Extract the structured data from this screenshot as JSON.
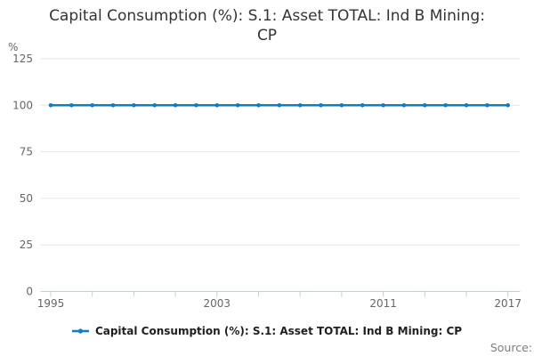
{
  "title": {
    "full": "Capital Consumption (%): S.1: Asset TOTAL: Ind B Mining: CP",
    "lines": [
      "Capital Consumption (%): S.1: Asset TOTAL: Ind B Mining:",
      "CP"
    ]
  },
  "legend": {
    "items": [
      {
        "label": "Capital Consumption (%): S.1: Asset TOTAL: Ind B Mining: CP",
        "color": "#0e7dc2"
      }
    ]
  },
  "source": {
    "label": "Source:"
  },
  "colors": {
    "series_blue": "#0e7dc2",
    "grid": "#e6e6e6",
    "axis": "#c4d0de",
    "tick_label": "#666666",
    "unit_label": "#666666",
    "title_text": "#333333",
    "legend_text": "#1f1f1f",
    "source_text": "#7d7d7d",
    "background": "#ffffff"
  },
  "y_axis": {
    "unit_label": "%",
    "tick_values": [
      0,
      25,
      50,
      75,
      100,
      125
    ],
    "min": 0,
    "max": 125
  },
  "x_axis": {
    "tick_years": [
      1995,
      1997,
      1999,
      2001,
      2003,
      2005,
      2007,
      2009,
      2011,
      2013,
      2015,
      2017
    ],
    "label_years": [
      1995,
      2003,
      2011,
      2017
    ],
    "min": 1995,
    "max": 2017
  },
  "chart_data": {
    "type": "line",
    "title": "Capital Consumption (%): S.1: Asset TOTAL: Ind B Mining: CP",
    "x": [
      1995,
      1996,
      1997,
      1998,
      1999,
      2000,
      2001,
      2002,
      2003,
      2004,
      2005,
      2006,
      2007,
      2008,
      2009,
      2010,
      2011,
      2012,
      2013,
      2014,
      2015,
      2016,
      2017
    ],
    "series": [
      {
        "name": "Capital Consumption (%): S.1: Asset TOTAL: Ind B Mining: CP",
        "values": [
          100,
          100,
          100,
          100,
          100,
          100,
          100,
          100,
          100,
          100,
          100,
          100,
          100,
          100,
          100,
          100,
          100,
          100,
          100,
          100,
          100,
          100,
          100
        ],
        "color": "#0e7dc2"
      }
    ],
    "xlabel": "",
    "ylabel": "%",
    "ylim": [
      0,
      125
    ],
    "xlim": [
      1995,
      2017
    ],
    "x_tick_labels_shown": [
      "1995",
      "2003",
      "2011",
      "2017"
    ],
    "grid": true,
    "markers": true,
    "legend_position": "bottom"
  }
}
